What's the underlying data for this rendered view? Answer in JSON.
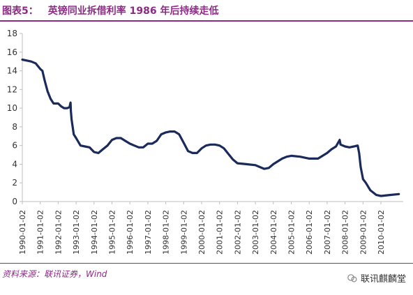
{
  "figure": {
    "label": "图表5：",
    "title": "英镑同业拆借利率 1986 年后持续走低"
  },
  "source": "资料来源：联讯证券，Wind",
  "watermark": {
    "text": "联讯麒麟堂",
    "icon": "wechat-logo-icon"
  },
  "colors": {
    "accent": "#8e2a86",
    "line": "#1a2a5a",
    "axis": "#bfbfbf"
  },
  "chart_data": {
    "type": "line",
    "title": "",
    "xlabel": "",
    "ylabel": "",
    "ylim": [
      0,
      18
    ],
    "yticks": [
      0,
      2,
      4,
      6,
      8,
      10,
      12,
      14,
      16,
      18
    ],
    "grid": false,
    "legend": "none",
    "x_tick_labels": [
      "1990-01-02",
      "1991-01-02",
      "1992-01-02",
      "1993-01-02",
      "1994-01-02",
      "1995-01-02",
      "1996-01-02",
      "1997-01-02",
      "1998-01-02",
      "1999-01-02",
      "2000-01-02",
      "2001-01-02",
      "2002-01-02",
      "2003-01-02",
      "2004-01-02",
      "2005-01-02",
      "2006-01-02",
      "2007-01-02",
      "2008-01-02",
      "2009-01-02",
      "2010-01-02"
    ],
    "series": [
      {
        "name": "",
        "x": [
          "1990-01-02",
          "1990-04-01",
          "1990-07-01",
          "1990-10-01",
          "1991-01-02",
          "1991-02-15",
          "1991-04-01",
          "1991-06-01",
          "1991-08-01",
          "1991-10-01",
          "1992-01-02",
          "1992-03-01",
          "1992-05-01",
          "1992-07-01",
          "1992-08-20",
          "1992-09-10",
          "1992-09-17",
          "1992-10-01",
          "1992-11-15",
          "1993-01-02",
          "1993-04-01",
          "1993-07-01",
          "1993-10-01",
          "1994-01-02",
          "1994-04-01",
          "1994-07-01",
          "1994-10-01",
          "1995-01-02",
          "1995-04-01",
          "1995-07-01",
          "1995-10-01",
          "1996-01-02",
          "1996-04-01",
          "1996-07-01",
          "1996-10-01",
          "1997-01-02",
          "1997-04-01",
          "1997-07-01",
          "1997-10-01",
          "1998-01-02",
          "1998-04-01",
          "1998-07-01",
          "1998-10-01",
          "1999-01-02",
          "1999-04-01",
          "1999-07-01",
          "1999-10-01",
          "2000-01-02",
          "2000-04-01",
          "2000-07-01",
          "2000-10-01",
          "2001-01-02",
          "2001-04-01",
          "2001-07-01",
          "2001-10-01",
          "2002-01-02",
          "2002-07-01",
          "2003-01-02",
          "2003-04-01",
          "2003-07-01",
          "2003-10-01",
          "2004-01-02",
          "2004-04-01",
          "2004-07-01",
          "2004-10-01",
          "2005-01-02",
          "2005-07-01",
          "2006-01-02",
          "2006-07-01",
          "2007-01-02",
          "2007-04-01",
          "2007-07-01",
          "2007-09-15",
          "2007-10-01",
          "2008-01-02",
          "2008-04-01",
          "2008-07-01",
          "2008-09-15",
          "2008-10-15",
          "2008-11-15",
          "2009-01-02",
          "2009-03-01",
          "2009-06-01",
          "2009-10-01",
          "2010-01-02",
          "2010-07-01",
          "2011-01-02"
        ],
        "y": [
          15.2,
          15.1,
          15.0,
          14.8,
          14.2,
          14.0,
          13.0,
          11.8,
          11.0,
          10.5,
          10.5,
          10.2,
          10.0,
          10.0,
          10.1,
          10.6,
          9.7,
          8.8,
          7.2,
          6.8,
          6.0,
          5.9,
          5.8,
          5.3,
          5.2,
          5.6,
          6.0,
          6.6,
          6.8,
          6.8,
          6.5,
          6.2,
          6.0,
          5.8,
          5.8,
          6.2,
          6.2,
          6.5,
          7.2,
          7.4,
          7.5,
          7.5,
          7.2,
          6.3,
          5.4,
          5.2,
          5.2,
          5.7,
          6.0,
          6.1,
          6.1,
          6.0,
          5.7,
          5.1,
          4.5,
          4.1,
          4.0,
          3.9,
          3.7,
          3.5,
          3.6,
          4.0,
          4.3,
          4.6,
          4.8,
          4.9,
          4.8,
          4.6,
          4.6,
          5.2,
          5.6,
          5.9,
          6.6,
          6.1,
          5.9,
          5.8,
          5.9,
          6.0,
          5.2,
          3.7,
          2.4,
          2.0,
          1.2,
          0.7,
          0.6,
          0.7,
          0.8
        ]
      }
    ]
  }
}
